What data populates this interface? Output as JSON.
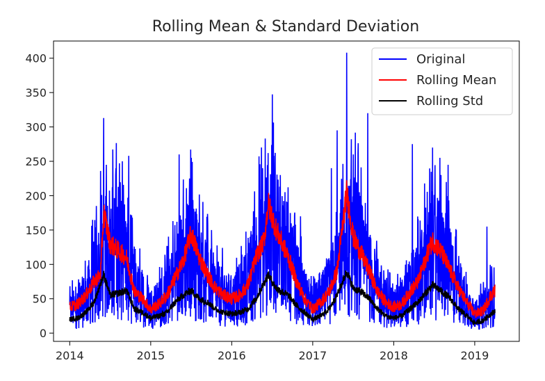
{
  "chart_data": {
    "type": "line",
    "title": "Rolling Mean & Standard Deviation",
    "xlabel": "",
    "ylabel": "",
    "xlim": [
      2013.8,
      2019.55
    ],
    "ylim": [
      -12,
      425
    ],
    "grid": false,
    "legend_position": "top-right",
    "x_ticks": [
      {
        "value": 2014,
        "label": "2014"
      },
      {
        "value": 2015,
        "label": "2015"
      },
      {
        "value": 2016,
        "label": "2016"
      },
      {
        "value": 2017,
        "label": "2017"
      },
      {
        "value": 2018,
        "label": "2018"
      },
      {
        "value": 2019,
        "label": "2019"
      }
    ],
    "y_ticks": [
      {
        "value": 0,
        "label": "0"
      },
      {
        "value": 50,
        "label": "50"
      },
      {
        "value": 100,
        "label": "100"
      },
      {
        "value": 150,
        "label": "150"
      },
      {
        "value": 200,
        "label": "200"
      },
      {
        "value": 250,
        "label": "250"
      },
      {
        "value": 300,
        "label": "300"
      },
      {
        "value": 350,
        "label": "350"
      },
      {
        "value": 400,
        "label": "400"
      }
    ],
    "series": [
      {
        "name": "Original",
        "color": "#0000ff",
        "x_start": 2014.0,
        "x_end": 2019.25,
        "mean_profile": [
          [
            2014.0,
            35
          ],
          [
            2014.1,
            40
          ],
          [
            2014.2,
            55
          ],
          [
            2014.3,
            80
          ],
          [
            2014.4,
            105
          ],
          [
            2014.5,
            135
          ],
          [
            2014.6,
            125
          ],
          [
            2014.7,
            110
          ],
          [
            2014.8,
            65
          ],
          [
            2014.9,
            55
          ],
          [
            2015.0,
            40
          ],
          [
            2015.1,
            45
          ],
          [
            2015.2,
            60
          ],
          [
            2015.3,
            85
          ],
          [
            2015.4,
            105
          ],
          [
            2015.5,
            125
          ],
          [
            2015.6,
            100
          ],
          [
            2015.7,
            80
          ],
          [
            2015.8,
            65
          ],
          [
            2015.9,
            55
          ],
          [
            2016.0,
            50
          ],
          [
            2016.1,
            60
          ],
          [
            2016.2,
            75
          ],
          [
            2016.3,
            110
          ],
          [
            2016.4,
            135
          ],
          [
            2016.5,
            165
          ],
          [
            2016.6,
            140
          ],
          [
            2016.7,
            110
          ],
          [
            2016.8,
            80
          ],
          [
            2016.9,
            55
          ],
          [
            2017.0,
            40
          ],
          [
            2017.1,
            50
          ],
          [
            2017.2,
            65
          ],
          [
            2017.3,
            95
          ],
          [
            2017.4,
            120
          ],
          [
            2017.5,
            150
          ],
          [
            2017.6,
            115
          ],
          [
            2017.7,
            90
          ],
          [
            2017.8,
            65
          ],
          [
            2017.9,
            45
          ],
          [
            2018.0,
            40
          ],
          [
            2018.1,
            45
          ],
          [
            2018.2,
            65
          ],
          [
            2018.3,
            80
          ],
          [
            2018.4,
            105
          ],
          [
            2018.5,
            120
          ],
          [
            2018.6,
            110
          ],
          [
            2018.7,
            90
          ],
          [
            2018.8,
            65
          ],
          [
            2018.9,
            45
          ],
          [
            2019.0,
            30
          ],
          [
            2019.1,
            35
          ],
          [
            2019.2,
            50
          ],
          [
            2019.25,
            60
          ]
        ],
        "spikes": [
          [
            2014.42,
            313
          ],
          [
            2014.38,
            236
          ],
          [
            2014.57,
            240
          ],
          [
            2014.65,
            250
          ],
          [
            2014.73,
            258
          ],
          [
            2014.33,
            185
          ],
          [
            2015.35,
            260
          ],
          [
            2015.5,
            255
          ],
          [
            2015.48,
            225
          ],
          [
            2016.45,
            262
          ],
          [
            2016.38,
            240
          ],
          [
            2016.52,
            258
          ],
          [
            2016.6,
            230
          ],
          [
            2017.3,
            295
          ],
          [
            2017.42,
            408
          ],
          [
            2017.68,
            320
          ],
          [
            2017.5,
            260
          ],
          [
            2017.23,
            240
          ],
          [
            2018.23,
            275
          ],
          [
            2018.48,
            270
          ],
          [
            2018.57,
            255
          ],
          [
            2018.67,
            245
          ],
          [
            2019.15,
            155
          ],
          [
            2015.75,
            150
          ],
          [
            2016.85,
            170
          ]
        ]
      },
      {
        "name": "Rolling Mean",
        "color": "#ff0000",
        "profile": [
          [
            2014.0,
            38
          ],
          [
            2014.1,
            42
          ],
          [
            2014.2,
            55
          ],
          [
            2014.3,
            75
          ],
          [
            2014.38,
            85
          ],
          [
            2014.42,
            175
          ],
          [
            2014.5,
            130
          ],
          [
            2014.6,
            120
          ],
          [
            2014.7,
            110
          ],
          [
            2014.8,
            60
          ],
          [
            2014.9,
            50
          ],
          [
            2015.0,
            35
          ],
          [
            2015.1,
            42
          ],
          [
            2015.2,
            55
          ],
          [
            2015.3,
            80
          ],
          [
            2015.4,
            105
          ],
          [
            2015.5,
            145
          ],
          [
            2015.6,
            110
          ],
          [
            2015.7,
            85
          ],
          [
            2015.8,
            65
          ],
          [
            2015.9,
            55
          ],
          [
            2016.0,
            50
          ],
          [
            2016.1,
            55
          ],
          [
            2016.2,
            70
          ],
          [
            2016.3,
            110
          ],
          [
            2016.4,
            135
          ],
          [
            2016.45,
            188
          ],
          [
            2016.55,
            150
          ],
          [
            2016.7,
            110
          ],
          [
            2016.8,
            75
          ],
          [
            2016.9,
            50
          ],
          [
            2017.0,
            35
          ],
          [
            2017.1,
            45
          ],
          [
            2017.2,
            60
          ],
          [
            2017.3,
            90
          ],
          [
            2017.42,
            205
          ],
          [
            2017.5,
            140
          ],
          [
            2017.6,
            115
          ],
          [
            2017.7,
            90
          ],
          [
            2017.8,
            60
          ],
          [
            2017.9,
            45
          ],
          [
            2018.0,
            38
          ],
          [
            2018.1,
            42
          ],
          [
            2018.2,
            60
          ],
          [
            2018.3,
            75
          ],
          [
            2018.4,
            110
          ],
          [
            2018.48,
            135
          ],
          [
            2018.6,
            115
          ],
          [
            2018.7,
            90
          ],
          [
            2018.8,
            65
          ],
          [
            2018.9,
            45
          ],
          [
            2019.0,
            28
          ],
          [
            2019.1,
            32
          ],
          [
            2019.2,
            55
          ],
          [
            2019.25,
            62
          ]
        ]
      },
      {
        "name": "Rolling Std",
        "color": "#000000",
        "profile": [
          [
            2014.0,
            20
          ],
          [
            2014.1,
            22
          ],
          [
            2014.2,
            30
          ],
          [
            2014.3,
            45
          ],
          [
            2014.42,
            85
          ],
          [
            2014.5,
            55
          ],
          [
            2014.6,
            58
          ],
          [
            2014.7,
            62
          ],
          [
            2014.8,
            35
          ],
          [
            2014.9,
            30
          ],
          [
            2015.0,
            22
          ],
          [
            2015.1,
            25
          ],
          [
            2015.2,
            30
          ],
          [
            2015.3,
            45
          ],
          [
            2015.4,
            55
          ],
          [
            2015.5,
            62
          ],
          [
            2015.6,
            50
          ],
          [
            2015.7,
            45
          ],
          [
            2015.8,
            35
          ],
          [
            2015.9,
            30
          ],
          [
            2016.0,
            28
          ],
          [
            2016.1,
            30
          ],
          [
            2016.2,
            35
          ],
          [
            2016.3,
            50
          ],
          [
            2016.45,
            85
          ],
          [
            2016.55,
            65
          ],
          [
            2016.7,
            55
          ],
          [
            2016.8,
            40
          ],
          [
            2016.9,
            30
          ],
          [
            2017.0,
            20
          ],
          [
            2017.1,
            25
          ],
          [
            2017.2,
            35
          ],
          [
            2017.3,
            55
          ],
          [
            2017.42,
            90
          ],
          [
            2017.5,
            65
          ],
          [
            2017.6,
            60
          ],
          [
            2017.7,
            50
          ],
          [
            2017.8,
            35
          ],
          [
            2017.9,
            25
          ],
          [
            2018.0,
            22
          ],
          [
            2018.1,
            25
          ],
          [
            2018.2,
            35
          ],
          [
            2018.3,
            45
          ],
          [
            2018.48,
            70
          ],
          [
            2018.6,
            60
          ],
          [
            2018.7,
            50
          ],
          [
            2018.8,
            35
          ],
          [
            2018.9,
            25
          ],
          [
            2019.0,
            15
          ],
          [
            2019.1,
            18
          ],
          [
            2019.2,
            28
          ],
          [
            2019.25,
            32
          ]
        ]
      }
    ]
  }
}
